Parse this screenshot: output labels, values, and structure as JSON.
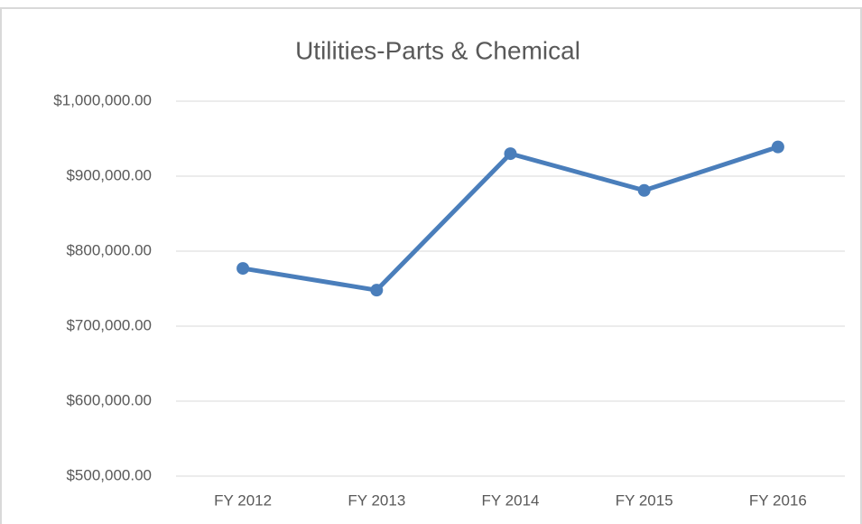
{
  "chart_data": {
    "type": "line",
    "title": "Utilities-Parts & Chemical",
    "categories": [
      "FY 2012",
      "FY 2013",
      "FY 2014",
      "FY 2015",
      "FY 2016"
    ],
    "values": [
      777000,
      748000,
      930000,
      881000,
      939000
    ],
    "color": "#4a7ebb",
    "ylim": [
      500000,
      1000000
    ],
    "yticks": [
      {
        "value": 500000,
        "label": "$500,000.00"
      },
      {
        "value": 600000,
        "label": "$600,000.00"
      },
      {
        "value": 700000,
        "label": "$700,000.00"
      },
      {
        "value": 800000,
        "label": "$800,000.00"
      },
      {
        "value": 900000,
        "label": "$900,000.00"
      },
      {
        "value": 1000000,
        "label": "$1,000,000.00"
      }
    ],
    "grid": true
  }
}
